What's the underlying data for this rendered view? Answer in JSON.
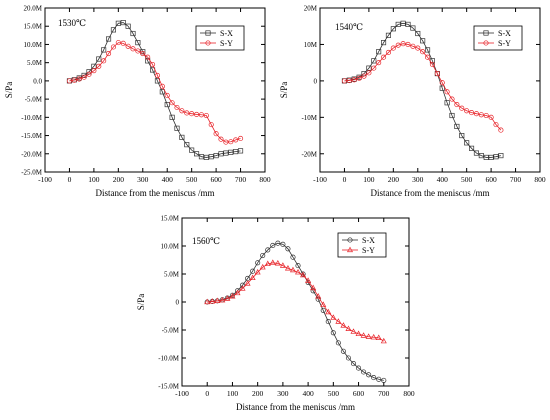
{
  "chart_data": [
    {
      "type": "line",
      "title": "",
      "annotation": "1530℃",
      "xlabel": "Distance from the meniscus /mm",
      "ylabel": "S/Pa",
      "xlim": [
        -100,
        800
      ],
      "ylim": [
        -25,
        20
      ],
      "x_ticks": [
        -100,
        0,
        100,
        200,
        300,
        400,
        500,
        600,
        700,
        800
      ],
      "y_ticks": [
        {
          "v": 20,
          "label": "20.0M"
        },
        {
          "v": 15,
          "label": "15.0M"
        },
        {
          "v": 10,
          "label": "10.0M"
        },
        {
          "v": 5,
          "label": "5.0M"
        },
        {
          "v": 0,
          "label": "0.0"
        },
        {
          "v": -5,
          "label": "-5.0M"
        },
        {
          "v": -10,
          "label": "-10.0M"
        },
        {
          "v": -15,
          "label": "-15.0M"
        },
        {
          "v": -20,
          "label": "-20.0M"
        },
        {
          "v": -25,
          "label": "-25.0M"
        }
      ],
      "legend_position": "top-right",
      "series": [
        {
          "name": "S-X",
          "color": "#333333",
          "marker": "square",
          "x": [
            0,
            20,
            40,
            60,
            80,
            100,
            120,
            140,
            160,
            180,
            200,
            220,
            240,
            260,
            280,
            300,
            320,
            340,
            360,
            380,
            400,
            420,
            440,
            460,
            480,
            500,
            520,
            540,
            560,
            580,
            600,
            620,
            640,
            660,
            680,
            700
          ],
          "y": [
            0,
            0.3,
            0.8,
            1.5,
            2.5,
            4,
            6,
            8.5,
            11.5,
            14,
            15.8,
            16,
            15,
            13,
            10.5,
            8,
            5.5,
            3,
            0,
            -3,
            -6.5,
            -10,
            -13,
            -15.5,
            -17.5,
            -19,
            -20,
            -20.8,
            -21,
            -20.8,
            -20.5,
            -20,
            -19.8,
            -19.6,
            -19.4,
            -19.2
          ]
        },
        {
          "name": "S-Y",
          "color": "#e8242a",
          "marker": "circle",
          "x": [
            0,
            20,
            40,
            60,
            80,
            100,
            120,
            140,
            160,
            180,
            200,
            220,
            240,
            260,
            280,
            300,
            320,
            340,
            360,
            380,
            400,
            420,
            440,
            460,
            480,
            500,
            520,
            540,
            560,
            580,
            600,
            620,
            640,
            660,
            680,
            700
          ],
          "y": [
            0,
            0.2,
            0.5,
            1,
            1.8,
            2.8,
            4,
            5.5,
            7.5,
            9.3,
            10.5,
            10.3,
            9.5,
            8.8,
            8.2,
            7.5,
            6.5,
            4.5,
            1.5,
            -1.5,
            -4,
            -6,
            -7.3,
            -8.2,
            -8.8,
            -9,
            -9.2,
            -9.3,
            -9.5,
            -12,
            -14.5,
            -16,
            -16.8,
            -16.7,
            -16.2,
            -15.8
          ]
        }
      ]
    },
    {
      "type": "line",
      "title": "",
      "annotation": "1540℃",
      "xlabel": "Distance from the meniscus /mm",
      "ylabel": "S/Pa",
      "xlim": [
        -100,
        800
      ],
      "ylim": [
        -25,
        20
      ],
      "x_ticks": [
        -100,
        0,
        100,
        200,
        300,
        400,
        500,
        600,
        700,
        800
      ],
      "y_ticks": [
        {
          "v": 20,
          "label": "20M"
        },
        {
          "v": 10,
          "label": "10M"
        },
        {
          "v": 0,
          "label": "0"
        },
        {
          "v": -10,
          "label": "-10M"
        },
        {
          "v": -20,
          "label": "-20M"
        }
      ],
      "legend_position": "top-right",
      "series": [
        {
          "name": "S-X",
          "color": "#333333",
          "marker": "square",
          "x": [
            0,
            20,
            40,
            60,
            80,
            100,
            120,
            140,
            160,
            180,
            200,
            220,
            240,
            260,
            280,
            300,
            320,
            340,
            360,
            380,
            400,
            420,
            440,
            460,
            480,
            500,
            520,
            540,
            560,
            580,
            600,
            620,
            640
          ],
          "y": [
            0,
            0.2,
            0.5,
            1,
            2,
            3.5,
            5.5,
            8,
            10.5,
            12.5,
            14.3,
            15.5,
            15.8,
            15.5,
            14.5,
            13,
            11,
            8.5,
            5.5,
            2,
            -2,
            -6,
            -9.5,
            -12.5,
            -15,
            -17,
            -18.5,
            -19.8,
            -20.5,
            -21,
            -21,
            -20.8,
            -20.5
          ]
        },
        {
          "name": "S-Y",
          "color": "#e8242a",
          "marker": "circle",
          "x": [
            0,
            20,
            40,
            60,
            80,
            100,
            120,
            140,
            160,
            180,
            200,
            220,
            240,
            260,
            280,
            300,
            320,
            340,
            360,
            380,
            400,
            420,
            440,
            460,
            480,
            500,
            520,
            540,
            560,
            580,
            600,
            620,
            640
          ],
          "y": [
            0,
            0.1,
            0.3,
            0.7,
            1.3,
            2.2,
            3.5,
            5,
            6.5,
            7.8,
            9,
            9.8,
            10.2,
            10,
            9.5,
            9,
            8,
            6.5,
            4.5,
            2,
            -0.5,
            -3,
            -5,
            -6.5,
            -7.5,
            -8.2,
            -8.7,
            -9,
            -9.3,
            -9.5,
            -10,
            -12,
            -13.5
          ]
        }
      ]
    },
    {
      "type": "line",
      "title": "",
      "annotation": "1560℃",
      "xlabel": "Distance from the meniscus /mm",
      "ylabel": "S/Pa",
      "xlim": [
        -100,
        800
      ],
      "ylim": [
        -15,
        15
      ],
      "x_ticks": [
        -100,
        0,
        100,
        200,
        300,
        400,
        500,
        600,
        700,
        800
      ],
      "y_ticks": [
        {
          "v": 15,
          "label": "15.0M"
        },
        {
          "v": 10,
          "label": "10.0M"
        },
        {
          "v": 5,
          "label": "5.0M"
        },
        {
          "v": 0,
          "label": "0"
        },
        {
          "v": -5,
          "label": "-5.0M"
        },
        {
          "v": -10,
          "label": "-10.0M"
        },
        {
          "v": -15,
          "label": "-15.0M"
        }
      ],
      "legend_position": "top-right",
      "series": [
        {
          "name": "S-X",
          "color": "#333333",
          "marker": "circle",
          "x": [
            0,
            20,
            40,
            60,
            80,
            100,
            120,
            140,
            160,
            180,
            200,
            220,
            240,
            260,
            280,
            300,
            320,
            340,
            360,
            380,
            400,
            420,
            440,
            460,
            480,
            500,
            520,
            540,
            560,
            580,
            600,
            620,
            640,
            660,
            680,
            700
          ],
          "y": [
            0,
            0.1,
            0.2,
            0.4,
            0.7,
            1.2,
            2,
            3,
            4.2,
            5.5,
            7,
            8.3,
            9.3,
            10.1,
            10.5,
            10.3,
            9.5,
            8,
            6.5,
            5,
            3.5,
            2,
            0.5,
            -1.5,
            -3.5,
            -5.5,
            -7.3,
            -8.8,
            -10,
            -11,
            -11.8,
            -12.5,
            -13,
            -13.5,
            -13.8,
            -14
          ]
        },
        {
          "name": "S-Y",
          "color": "#e8242a",
          "marker": "triangle",
          "x": [
            0,
            20,
            40,
            60,
            80,
            100,
            120,
            140,
            160,
            180,
            200,
            220,
            240,
            260,
            280,
            300,
            320,
            340,
            360,
            380,
            400,
            420,
            440,
            460,
            480,
            500,
            520,
            540,
            560,
            580,
            600,
            620,
            640,
            660,
            680,
            700
          ],
          "y": [
            0,
            0.1,
            0.2,
            0.3,
            0.6,
            1,
            1.6,
            2.4,
            3.3,
            4.3,
            5.3,
            6.2,
            6.8,
            7,
            6.9,
            6.5,
            6,
            5.7,
            5.3,
            4.8,
            3.8,
            2.5,
            1,
            -0.5,
            -1.8,
            -2.8,
            -3.5,
            -4.2,
            -4.8,
            -5.3,
            -5.7,
            -6,
            -6.2,
            -6.3,
            -6.4,
            -7
          ]
        }
      ]
    }
  ]
}
